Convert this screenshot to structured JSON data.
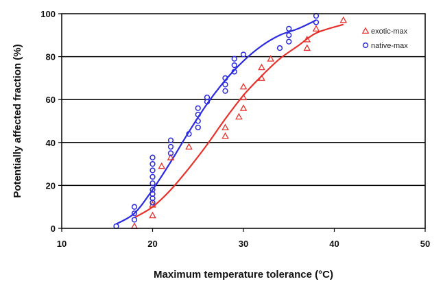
{
  "chart_data": {
    "type": "scatter",
    "xlabel": "Maximum temperature tolerance (°C)",
    "ylabel": "Potentially affected fraction (%)",
    "xlim": [
      10,
      50
    ],
    "ylim": [
      0,
      100
    ],
    "xticks": [
      10,
      20,
      30,
      40,
      50
    ],
    "yticks": [
      0,
      20,
      40,
      60,
      80,
      100
    ],
    "grid": "horizontal",
    "legend_position": "top-right",
    "series": [
      {
        "name": "exotic-max",
        "color": "#e8302a",
        "marker": "triangle",
        "points": [
          [
            18,
            1
          ],
          [
            20,
            6
          ],
          [
            20,
            11
          ],
          [
            21,
            29
          ],
          [
            22,
            33
          ],
          [
            24,
            38
          ],
          [
            28,
            43
          ],
          [
            28,
            47
          ],
          [
            29.5,
            52
          ],
          [
            30,
            56
          ],
          [
            30,
            61
          ],
          [
            30,
            66
          ],
          [
            32,
            70
          ],
          [
            32,
            75
          ],
          [
            33,
            79
          ],
          [
            37,
            84
          ],
          [
            37,
            88
          ],
          [
            38,
            93
          ],
          [
            41,
            97
          ]
        ],
        "fit": [
          [
            18,
            5
          ],
          [
            20,
            10
          ],
          [
            22,
            18
          ],
          [
            24,
            28
          ],
          [
            26,
            39
          ],
          [
            28,
            51
          ],
          [
            30,
            62
          ],
          [
            32,
            71
          ],
          [
            34,
            79
          ],
          [
            36,
            85
          ],
          [
            38,
            91
          ],
          [
            41,
            95
          ]
        ]
      },
      {
        "name": "native-max",
        "color": "#2a2ae0",
        "marker": "circle",
        "points": [
          [
            16,
            1
          ],
          [
            18,
            4
          ],
          [
            18,
            7
          ],
          [
            18,
            10
          ],
          [
            20,
            12
          ],
          [
            20,
            14
          ],
          [
            20,
            16
          ],
          [
            20,
            18
          ],
          [
            20,
            21
          ],
          [
            20,
            24
          ],
          [
            20,
            27
          ],
          [
            20,
            30
          ],
          [
            20,
            33
          ],
          [
            22,
            35
          ],
          [
            22,
            38
          ],
          [
            22,
            41
          ],
          [
            24,
            44
          ],
          [
            25,
            47
          ],
          [
            25,
            50
          ],
          [
            25,
            53
          ],
          [
            25,
            56
          ],
          [
            26,
            59
          ],
          [
            26,
            61
          ],
          [
            28,
            64
          ],
          [
            28,
            67
          ],
          [
            28,
            70
          ],
          [
            29,
            73
          ],
          [
            29,
            76
          ],
          [
            29,
            79
          ],
          [
            30,
            81
          ],
          [
            34,
            84
          ],
          [
            35,
            87
          ],
          [
            35,
            90
          ],
          [
            35,
            93
          ],
          [
            38,
            96
          ],
          [
            38,
            99
          ]
        ],
        "fit": [
          [
            16,
            2
          ],
          [
            18,
            7
          ],
          [
            20,
            18
          ],
          [
            22,
            31
          ],
          [
            24,
            45
          ],
          [
            26,
            58
          ],
          [
            28,
            69
          ],
          [
            30,
            78
          ],
          [
            32,
            85
          ],
          [
            34,
            90
          ],
          [
            36,
            93
          ],
          [
            38,
            97
          ]
        ]
      }
    ]
  }
}
